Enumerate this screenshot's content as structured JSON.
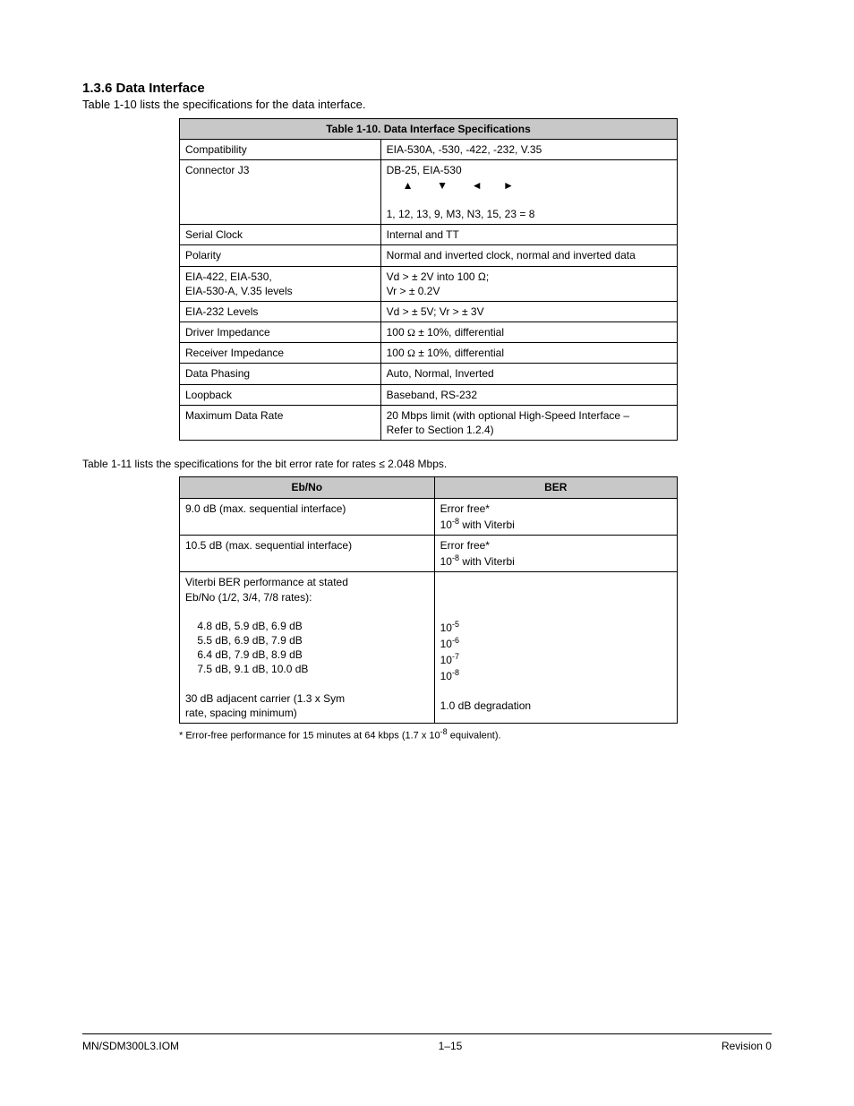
{
  "section": {
    "heading": "1.3.6 Data Interface",
    "sub": "Table 1-10 lists the specifications for the data interface."
  },
  "table1": {
    "header": "Table 1-10. Data Interface Specifications",
    "rows": [
      {
        "a": "Compatibility",
        "b": "EIA-530A, -530, -422, -232, V.35"
      },
      {
        "a": "Connector J3",
        "b_pre": "DB-25, EIA-530\n",
        "b_arrows": "▲        ▼        ◄       ►",
        "b_post": "\n1, 12, 13, 9, M3, N3, 15, 23 = 8"
      },
      {
        "a": "Serial Clock",
        "b": "Internal and TT"
      },
      {
        "a": "Polarity",
        "b": "Normal and inverted clock, normal and inverted data"
      },
      {
        "a": "EIA-422, EIA-530,\nEIA-530-A, V.35 levels",
        "b": "Vd > ± 2V into 100 Ω;\nVr > ± 0.2V"
      },
      {
        "a": "EIA-232 Levels",
        "b": "Vd > ± 5V; Vr > ± 3V"
      },
      {
        "a": "Driver Impedance",
        "b_html": "100 <span class='ohm'>Ω</span> ± 10%, differential"
      },
      {
        "a": "Receiver Impedance",
        "b_html": "100 <span class='ohm'>Ω</span> ± 10%, differential"
      },
      {
        "a": "Data Phasing",
        "b": "Auto, Normal, Inverted"
      },
      {
        "a": "Loopback",
        "b": "Baseband, RS-232"
      },
      {
        "a": "Maximum Data Rate",
        "b": "20 Mbps limit (with optional High-Speed Interface –\nRefer to Section 1.2.4)"
      }
    ]
  },
  "note": "Table 1-11 lists the specifications for the bit error rate for rates ≤ 2.048 Mbps.",
  "table2": {
    "head_a": "Eb/No",
    "head_b": "BER",
    "rows": [
      {
        "a": "9.0 dB (max. sequential interface)",
        "b_html": "Error free*\n10<sup>-8</sup> with Viterbi"
      },
      {
        "a": "10.5 dB (max. sequential interface)",
        "b_html": "Error free*\n10<sup>-8</sup> with Viterbi"
      },
      {
        "a": "Viterbi BER performance at stated\nEb/No (1/2, 3/4, 7/8 rates):\n\n    4.8 dB, 5.9 dB, 6.9 dB\n    5.5 dB, 6.9 dB, 7.9 dB\n    6.4 dB, 7.9 dB, 8.9 dB\n    7.5 dB, 9.1 dB, 10.0 dB\n\n30 dB adjacent carrier (1.3 x Sym\nrate, spacing minimum)",
        "b_html": "\n\n\n10<sup>-5</sup>\n10<sup>-6</sup>\n10<sup>-7</sup>\n10<sup>-8</sup>\n\n1.0 dB degradation"
      }
    ]
  },
  "footnote_html": "* Error-free performance for 15 minutes at 64 kbps (1.7 x 10<sup>-8</sup> equivalent).",
  "footer": {
    "left": "MN/SDM300L3.IOM",
    "center": "1–15",
    "right": "Revision 0"
  }
}
